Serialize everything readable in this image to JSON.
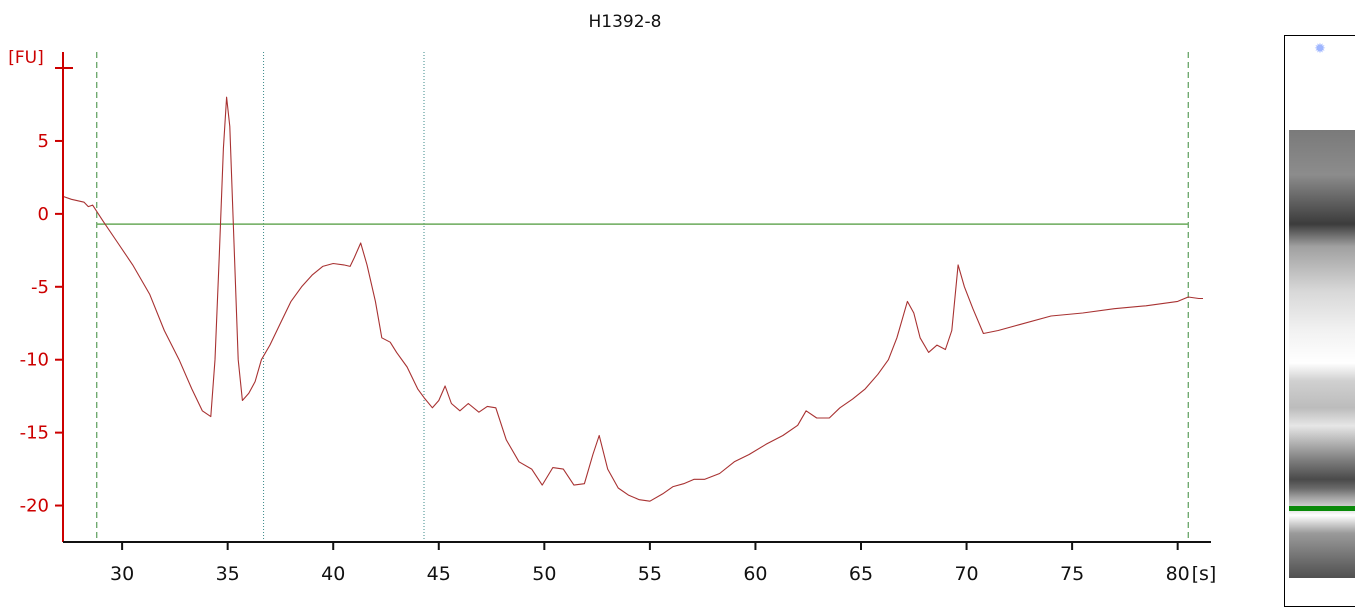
{
  "chart_data": {
    "type": "line",
    "title": "H1392-8",
    "xlabel": "[s]",
    "ylabel": "[FU]",
    "xlim": [
      27.2,
      81.2
    ],
    "ylim": [
      -22.5,
      11.1
    ],
    "x_ticks": [
      30,
      35,
      40,
      45,
      50,
      55,
      60,
      65,
      70,
      75,
      80
    ],
    "x_tick_labels": [
      "30",
      "35",
      "40",
      "45",
      "50",
      "55",
      "60",
      "65",
      "70",
      "75",
      "80"
    ],
    "y_ticks": [
      5,
      0,
      -5,
      -10,
      -15,
      -20
    ],
    "y_tick_labels": [
      "5",
      "0",
      "-5",
      "-10",
      "-15",
      "-20"
    ],
    "grid": false,
    "series": [
      {
        "color": "#a83232",
        "x": [
          27.2,
          27.6,
          28.2,
          28.4,
          28.6,
          29.1,
          29.8,
          30.5,
          31.3,
          32.0,
          32.7,
          33.3,
          33.8,
          34.2,
          34.4,
          34.6,
          34.8,
          34.95,
          35.1,
          35.3,
          35.5,
          35.7,
          36.0,
          36.3,
          36.6,
          37.0,
          37.5,
          38.0,
          38.5,
          39.0,
          39.5,
          40.0,
          40.5,
          40.8,
          41.0,
          41.3,
          41.6,
          42.0,
          42.3,
          42.7,
          43.0,
          43.5,
          44.0,
          44.3,
          44.7,
          45.0,
          45.3,
          45.6,
          46.0,
          46.4,
          46.9,
          47.3,
          47.7,
          48.2,
          48.8,
          49.4,
          49.9,
          50.4,
          50.9,
          51.4,
          51.9,
          52.3,
          52.6,
          53.0,
          53.5,
          54.0,
          54.5,
          55.0,
          55.6,
          56.1,
          56.6,
          57.1,
          57.6,
          58.3,
          59.0,
          59.7,
          60.5,
          61.3,
          62.0,
          62.4,
          62.9,
          63.5,
          64.0,
          64.6,
          65.2,
          65.8,
          66.3,
          66.7,
          67.0,
          67.2,
          67.5,
          67.8,
          68.2,
          68.6,
          69.0,
          69.3,
          69.6,
          69.9,
          70.3,
          70.8,
          71.5,
          72.5,
          74.0,
          75.5,
          77.0,
          78.5,
          80.0,
          80.5,
          81.0,
          81.2
        ],
        "values": [
          1.2,
          1.0,
          0.8,
          0.5,
          0.6,
          -0.5,
          -2.0,
          -3.5,
          -5.5,
          -8.0,
          -10.0,
          -12.0,
          -13.5,
          -13.9,
          -10.0,
          -3.0,
          4.5,
          8.0,
          6.0,
          -2.0,
          -10.0,
          -12.8,
          -12.3,
          -11.5,
          -10.0,
          -9.0,
          -7.5,
          -6.0,
          -5.0,
          -4.2,
          -3.6,
          -3.4,
          -3.5,
          -3.6,
          -3.0,
          -2.0,
          -3.5,
          -6.0,
          -8.5,
          -8.8,
          -9.5,
          -10.5,
          -12.0,
          -12.6,
          -13.3,
          -12.8,
          -11.8,
          -13.0,
          -13.5,
          -13.0,
          -13.6,
          -13.2,
          -13.3,
          -15.5,
          -17.0,
          -17.5,
          -18.6,
          -17.4,
          -17.5,
          -18.6,
          -18.5,
          -16.5,
          -15.2,
          -17.5,
          -18.8,
          -19.3,
          -19.6,
          -19.7,
          -19.2,
          -18.7,
          -18.5,
          -18.2,
          -18.2,
          -17.8,
          -17.0,
          -16.5,
          -15.8,
          -15.2,
          -14.5,
          -13.5,
          -14.0,
          -14.0,
          -13.3,
          -12.7,
          -12.0,
          -11.0,
          -10.0,
          -8.5,
          -7.0,
          -6.0,
          -6.8,
          -8.5,
          -9.5,
          -9.0,
          -9.3,
          -8.0,
          -3.5,
          -5.0,
          -6.5,
          -8.2,
          -8.0,
          -7.6,
          -7.0,
          -6.8,
          -6.5,
          -6.3,
          -6.0,
          -5.7,
          -5.8,
          -5.8
        ]
      }
    ],
    "baseline": {
      "color": "#6aaa5a",
      "y": -0.7,
      "x_start": 28.8,
      "x_end": 80.5
    },
    "markers_dashed": {
      "color": "#3a8a3a",
      "x": [
        28.8,
        80.5
      ]
    },
    "markers_dotted": {
      "color": "#3a8a8a",
      "x": [
        36.7,
        44.3
      ]
    },
    "axis_color": "#cc0000"
  },
  "gel": {
    "marker_icon": "marker-dot-icon",
    "marker_color": "#9fb6ff",
    "band_color": "#0a8a0a",
    "band_position": 0.84
  }
}
